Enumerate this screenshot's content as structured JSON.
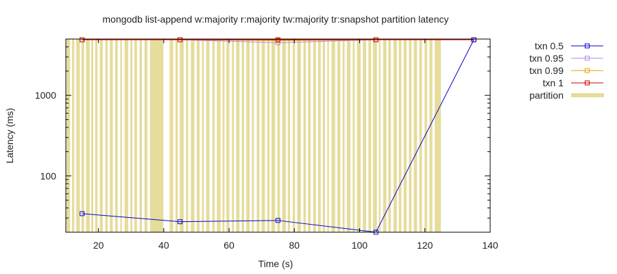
{
  "chart_data": {
    "type": "line",
    "title": "mongodb list-append w:majority r:majority tw:majority tr:snapshot partition latency",
    "xlabel": "Time (s)",
    "ylabel": "Latency (ms)",
    "xlim": [
      10,
      140
    ],
    "ylim": [
      20,
      5000
    ],
    "y_scale": "log",
    "x_ticks": [
      20,
      40,
      60,
      80,
      100,
      120,
      140
    ],
    "y_ticks": [
      {
        "value": 100,
        "label": "100"
      },
      {
        "value": 1000,
        "label": "1000"
      }
    ],
    "grid": false,
    "legend_position": "outside-right",
    "series": [
      {
        "name": "txn 0.5",
        "color": "#0000cc",
        "marker": "square",
        "x": [
          15,
          45,
          75,
          105,
          135
        ],
        "y": [
          34,
          27,
          28,
          20,
          4900
        ]
      },
      {
        "name": "txn 0.95",
        "color": "#b388e8",
        "marker": "square",
        "x": [
          15,
          45,
          75,
          105,
          135
        ],
        "y": [
          4900,
          4900,
          4500,
          4900,
          4900
        ]
      },
      {
        "name": "txn 0.99",
        "color": "#e8a000",
        "marker": "square",
        "x": [
          15,
          45,
          75,
          105,
          135
        ],
        "y": [
          4900,
          4900,
          4800,
          4900,
          4900
        ]
      },
      {
        "name": "txn 1",
        "color": "#cc0000",
        "marker": "square",
        "x": [
          15,
          45,
          75,
          105,
          135
        ],
        "y": [
          4900,
          4900,
          4900,
          4900,
          4900
        ]
      }
    ],
    "partition": {
      "name": "partition",
      "color": "#e6dc9c",
      "intervals": [
        [
          10.2,
          11.3
        ],
        [
          11.9,
          12.6
        ],
        [
          13.2,
          14.3
        ],
        [
          14.8,
          15.6
        ],
        [
          16.2,
          17.3
        ],
        [
          17.8,
          18.4
        ],
        [
          19.0,
          19.7
        ],
        [
          20.4,
          21.3
        ],
        [
          22.1,
          22.8
        ],
        [
          23.5,
          24.4
        ],
        [
          25.1,
          25.9
        ],
        [
          26.7,
          27.2
        ],
        [
          28.0,
          29.1
        ],
        [
          29.8,
          30.4
        ],
        [
          31.0,
          31.8
        ],
        [
          32.6,
          33.3
        ],
        [
          34.1,
          35.0
        ],
        [
          35.8,
          39.9
        ],
        [
          41.8,
          42.9
        ],
        [
          43.6,
          44.3
        ],
        [
          44.9,
          46.1
        ],
        [
          46.8,
          47.5
        ],
        [
          48.3,
          49.4
        ],
        [
          50.1,
          51.0
        ],
        [
          51.7,
          52.3
        ],
        [
          53.0,
          54.0
        ],
        [
          54.9,
          55.6
        ],
        [
          56.3,
          57.4
        ],
        [
          58.0,
          58.6
        ],
        [
          59.2,
          60.1
        ],
        [
          60.9,
          61.5
        ],
        [
          62.2,
          63.2
        ],
        [
          63.9,
          64.6
        ],
        [
          65.3,
          66.3
        ],
        [
          67.0,
          67.6
        ],
        [
          68.5,
          69.3
        ],
        [
          70.0,
          71.0
        ],
        [
          71.7,
          72.4
        ],
        [
          73.0,
          74.1
        ],
        [
          74.8,
          75.6
        ],
        [
          76.3,
          77.4
        ],
        [
          78.0,
          78.7
        ],
        [
          79.5,
          80.2
        ],
        [
          80.9,
          82.0
        ],
        [
          82.8,
          83.5
        ],
        [
          84.2,
          85.0
        ],
        [
          85.8,
          86.6
        ],
        [
          87.3,
          88.1
        ],
        [
          88.7,
          89.4
        ],
        [
          90.1,
          90.6
        ],
        [
          91.4,
          92.5
        ],
        [
          93.2,
          94.1
        ],
        [
          94.8,
          95.4
        ],
        [
          96.1,
          97.2
        ],
        [
          97.9,
          98.5
        ],
        [
          99.2,
          100.3
        ],
        [
          101.0,
          102.0
        ],
        [
          102.7,
          103.5
        ],
        [
          104.1,
          105.3
        ],
        [
          105.9,
          106.4
        ],
        [
          107.2,
          108.2
        ],
        [
          108.8,
          109.6
        ],
        [
          110.4,
          111.4
        ],
        [
          112.0,
          112.8
        ],
        [
          113.5,
          114.4
        ],
        [
          115.1,
          115.9
        ],
        [
          116.6,
          117.6
        ],
        [
          118.3,
          119.1
        ],
        [
          119.9,
          120.7
        ],
        [
          121.4,
          122.3
        ],
        [
          123.0,
          124.9
        ]
      ]
    }
  }
}
